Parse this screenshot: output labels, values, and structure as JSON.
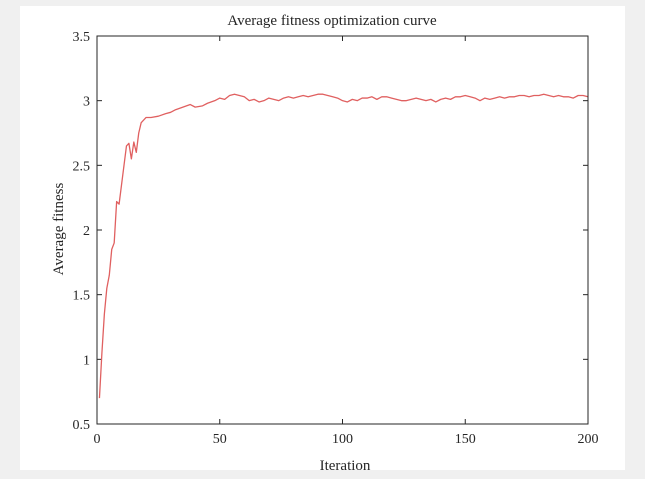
{
  "chart_data": {
    "type": "line",
    "title": "Average fitness optimization curve",
    "xlabel": "Iteration",
    "ylabel": "Average fitness",
    "xlim": [
      0,
      200
    ],
    "ylim": [
      0.5,
      3.5
    ],
    "xticks": [
      0,
      50,
      100,
      150,
      200
    ],
    "yticks": [
      0.5,
      1,
      1.5,
      2,
      2.5,
      3,
      3.5
    ],
    "grid": false,
    "series": [
      {
        "color": "#e06060",
        "x": [
          1,
          2,
          3,
          4,
          5,
          6,
          7,
          8,
          9,
          10,
          11,
          12,
          13,
          14,
          15,
          16,
          17,
          18,
          19,
          20,
          22,
          25,
          28,
          30,
          32,
          35,
          38,
          40,
          43,
          45,
          48,
          50,
          52,
          54,
          56,
          58,
          60,
          62,
          64,
          66,
          68,
          70,
          72,
          74,
          76,
          78,
          80,
          82,
          84,
          86,
          88,
          90,
          92,
          94,
          96,
          98,
          100,
          102,
          104,
          106,
          108,
          110,
          112,
          114,
          116,
          118,
          120,
          122,
          124,
          126,
          128,
          130,
          132,
          134,
          136,
          138,
          140,
          142,
          144,
          146,
          148,
          150,
          152,
          154,
          156,
          158,
          160,
          162,
          164,
          166,
          168,
          170,
          172,
          174,
          176,
          178,
          180,
          182,
          184,
          186,
          188,
          190,
          192,
          194,
          196,
          198,
          200
        ],
        "y": [
          0.7,
          1.05,
          1.35,
          1.55,
          1.65,
          1.85,
          1.9,
          2.22,
          2.2,
          2.35,
          2.5,
          2.65,
          2.67,
          2.55,
          2.68,
          2.6,
          2.75,
          2.83,
          2.85,
          2.87,
          2.87,
          2.88,
          2.9,
          2.91,
          2.93,
          2.95,
          2.97,
          2.95,
          2.96,
          2.98,
          3.0,
          3.02,
          3.01,
          3.04,
          3.05,
          3.04,
          3.03,
          3.0,
          3.01,
          2.99,
          3.0,
          3.02,
          3.01,
          3.0,
          3.02,
          3.03,
          3.02,
          3.03,
          3.04,
          3.03,
          3.04,
          3.05,
          3.05,
          3.04,
          3.03,
          3.02,
          3.0,
          2.99,
          3.01,
          3.0,
          3.02,
          3.02,
          3.03,
          3.01,
          3.03,
          3.03,
          3.02,
          3.01,
          3.0,
          3.0,
          3.01,
          3.02,
          3.01,
          3.0,
          3.01,
          2.99,
          3.01,
          3.02,
          3.01,
          3.03,
          3.03,
          3.04,
          3.03,
          3.02,
          3.0,
          3.02,
          3.01,
          3.02,
          3.03,
          3.02,
          3.03,
          3.03,
          3.04,
          3.04,
          3.03,
          3.04,
          3.04,
          3.05,
          3.04,
          3.03,
          3.04,
          3.03,
          3.03,
          3.02,
          3.04,
          3.04,
          3.03
        ]
      }
    ]
  }
}
